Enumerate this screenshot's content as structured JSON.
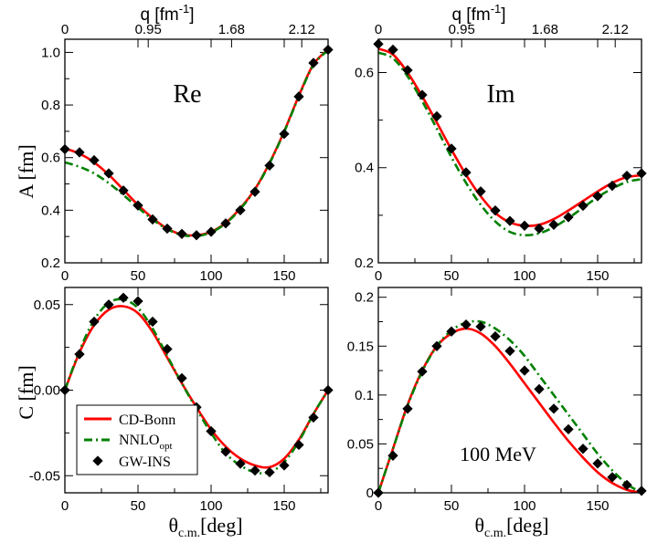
{
  "top_axis": {
    "label": "q [fm",
    "label_exp": "-1",
    "label_close": "]",
    "tick_labels": [
      "0",
      "0.95",
      "1.68",
      "2.12"
    ],
    "tick_theta": [
      0,
      57,
      114,
      162
    ]
  },
  "y_labels": {
    "A": "A [fm]",
    "C": "C [fm]"
  },
  "x_label": {
    "theta": "θ",
    "sub": "c.m.",
    "unit": "[deg]"
  },
  "legend": {
    "cdbonn": "CD-Bonn",
    "nnlo": "NNLO",
    "nnlo_sub": "opt",
    "gwins": "GW-INS"
  },
  "colors": {
    "cdbonn": "#ff0000",
    "nnlo": "#008000",
    "gwins": "#000000"
  },
  "chart_data": [
    {
      "panel": "A-Re",
      "type": "line",
      "title": "Re",
      "xlabel": "",
      "ylabel": "A [fm]",
      "xlim": [
        0,
        180
      ],
      "ylim": [
        0.2,
        1.05
      ],
      "xticks": [
        0,
        50,
        100,
        150
      ],
      "xticklabels": [
        "0",
        "50",
        "100",
        "150"
      ],
      "yticks": [
        0.2,
        0.4,
        0.6,
        0.8,
        1.0
      ],
      "yticklabels": [
        "0.2",
        "0.4",
        "0.6",
        "0.8",
        "1.0"
      ],
      "x": [
        0,
        10,
        20,
        30,
        40,
        50,
        60,
        70,
        80,
        90,
        100,
        110,
        120,
        130,
        140,
        150,
        160,
        170,
        180
      ],
      "series": [
        {
          "name": "CD-Bonn",
          "values": [
            0.635,
            0.615,
            0.582,
            0.535,
            0.478,
            0.42,
            0.37,
            0.33,
            0.308,
            0.305,
            0.318,
            0.352,
            0.408,
            0.48,
            0.58,
            0.7,
            0.835,
            0.955,
            1.01
          ]
        },
        {
          "name": "NNLOopt",
          "values": [
            0.582,
            0.565,
            0.54,
            0.503,
            0.458,
            0.41,
            0.365,
            0.328,
            0.306,
            0.302,
            0.316,
            0.35,
            0.405,
            0.478,
            0.578,
            0.698,
            0.832,
            0.952,
            1.008
          ]
        },
        {
          "name": "GW-INS",
          "values": [
            0.632,
            0.62,
            0.59,
            0.54,
            0.475,
            0.418,
            0.365,
            0.33,
            0.31,
            0.305,
            0.318,
            0.35,
            0.4,
            0.47,
            0.57,
            0.69,
            0.832,
            0.96,
            1.01
          ]
        }
      ]
    },
    {
      "panel": "A-Im",
      "type": "line",
      "title": "Im",
      "xlabel": "",
      "ylabel": "",
      "xlim": [
        0,
        180
      ],
      "ylim": [
        0.2,
        0.67
      ],
      "xticks": [
        0,
        50,
        100,
        150
      ],
      "xticklabels": [
        "0",
        "50",
        "100",
        "150"
      ],
      "yticks": [
        0.2,
        0.4,
        0.6
      ],
      "yticklabels": [
        "0.2",
        "0.4",
        "0.6"
      ],
      "x": [
        0,
        10,
        20,
        30,
        40,
        50,
        60,
        70,
        80,
        90,
        100,
        110,
        120,
        130,
        140,
        150,
        160,
        170,
        180
      ],
      "series": [
        {
          "name": "CD-Bonn",
          "values": [
            0.65,
            0.638,
            0.6,
            0.55,
            0.495,
            0.438,
            0.385,
            0.34,
            0.305,
            0.285,
            0.278,
            0.28,
            0.292,
            0.31,
            0.33,
            0.35,
            0.368,
            0.38,
            0.384
          ]
        },
        {
          "name": "NNLOopt",
          "values": [
            0.642,
            0.63,
            0.592,
            0.54,
            0.482,
            0.422,
            0.368,
            0.322,
            0.287,
            0.265,
            0.258,
            0.262,
            0.275,
            0.294,
            0.316,
            0.338,
            0.356,
            0.37,
            0.376
          ]
        },
        {
          "name": "GW-INS",
          "values": [
            0.66,
            0.648,
            0.605,
            0.553,
            0.508,
            0.44,
            0.39,
            0.35,
            0.31,
            0.288,
            0.278,
            0.272,
            0.28,
            0.296,
            0.32,
            0.34,
            0.362,
            0.383,
            0.388
          ]
        }
      ]
    },
    {
      "panel": "C-Re",
      "type": "line",
      "title": "",
      "xlabel": "θc.m.[deg]",
      "ylabel": "C [fm]",
      "xlim": [
        0,
        180
      ],
      "ylim": [
        -0.06,
        0.06
      ],
      "xticks": [
        0,
        50,
        100,
        150
      ],
      "xticklabels": [
        "0",
        "50",
        "100",
        "150"
      ],
      "yticks": [
        -0.05,
        0.0,
        0.05
      ],
      "yticklabels": [
        "-0.05",
        "0.00",
        "0.05"
      ],
      "x": [
        0,
        10,
        20,
        30,
        40,
        50,
        60,
        70,
        80,
        90,
        100,
        110,
        120,
        130,
        140,
        150,
        160,
        170,
        180
      ],
      "series": [
        {
          "name": "CD-Bonn",
          "values": [
            0.0,
            0.022,
            0.038,
            0.047,
            0.049,
            0.045,
            0.034,
            0.019,
            0.004,
            -0.01,
            -0.023,
            -0.033,
            -0.04,
            -0.044,
            -0.045,
            -0.04,
            -0.029,
            -0.014,
            0.0
          ]
        },
        {
          "name": "NNLOopt",
          "values": [
            0.0,
            0.023,
            0.041,
            0.051,
            0.053,
            0.048,
            0.036,
            0.02,
            0.004,
            -0.011,
            -0.025,
            -0.037,
            -0.044,
            -0.048,
            -0.048,
            -0.042,
            -0.03,
            -0.014,
            0.0
          ]
        },
        {
          "name": "GW-INS",
          "values": [
            0.0,
            0.021,
            0.04,
            0.05,
            0.054,
            0.052,
            0.04,
            0.024,
            0.007,
            -0.01,
            -0.024,
            -0.036,
            -0.043,
            -0.047,
            -0.048,
            -0.044,
            -0.032,
            -0.016,
            0.0
          ]
        }
      ]
    },
    {
      "panel": "C-Im",
      "type": "line",
      "title": "",
      "annotation": "100 MeV",
      "xlabel": "θc.m.[deg]",
      "ylabel": "",
      "xlim": [
        0,
        180
      ],
      "ylim": [
        0.0,
        0.21
      ],
      "xticks": [
        0,
        50,
        100,
        150
      ],
      "xticklabels": [
        "0",
        "50",
        "100",
        "150"
      ],
      "yticks": [
        0.0,
        0.05,
        0.1,
        0.15,
        0.2
      ],
      "yticklabels": [
        "0",
        "0.05",
        "0.1",
        "0.15",
        "0.2"
      ],
      "x": [
        0,
        10,
        20,
        30,
        40,
        50,
        60,
        70,
        80,
        90,
        100,
        110,
        120,
        130,
        140,
        150,
        160,
        170,
        180
      ],
      "series": [
        {
          "name": "CD-Bonn",
          "values": [
            0.0,
            0.045,
            0.09,
            0.125,
            0.15,
            0.163,
            0.168,
            0.163,
            0.15,
            0.132,
            0.112,
            0.092,
            0.072,
            0.053,
            0.036,
            0.021,
            0.01,
            0.003,
            0.0
          ]
        },
        {
          "name": "NNLOopt",
          "values": [
            0.0,
            0.045,
            0.089,
            0.124,
            0.15,
            0.166,
            0.174,
            0.175,
            0.168,
            0.156,
            0.14,
            0.12,
            0.1,
            0.08,
            0.06,
            0.04,
            0.023,
            0.009,
            0.0
          ]
        },
        {
          "name": "GW-INS",
          "values": [
            0.0,
            0.038,
            0.086,
            0.124,
            0.15,
            0.165,
            0.172,
            0.17,
            0.16,
            0.145,
            0.125,
            0.106,
            0.086,
            0.065,
            0.045,
            0.03,
            0.016,
            0.008,
            0.002
          ]
        }
      ]
    }
  ]
}
